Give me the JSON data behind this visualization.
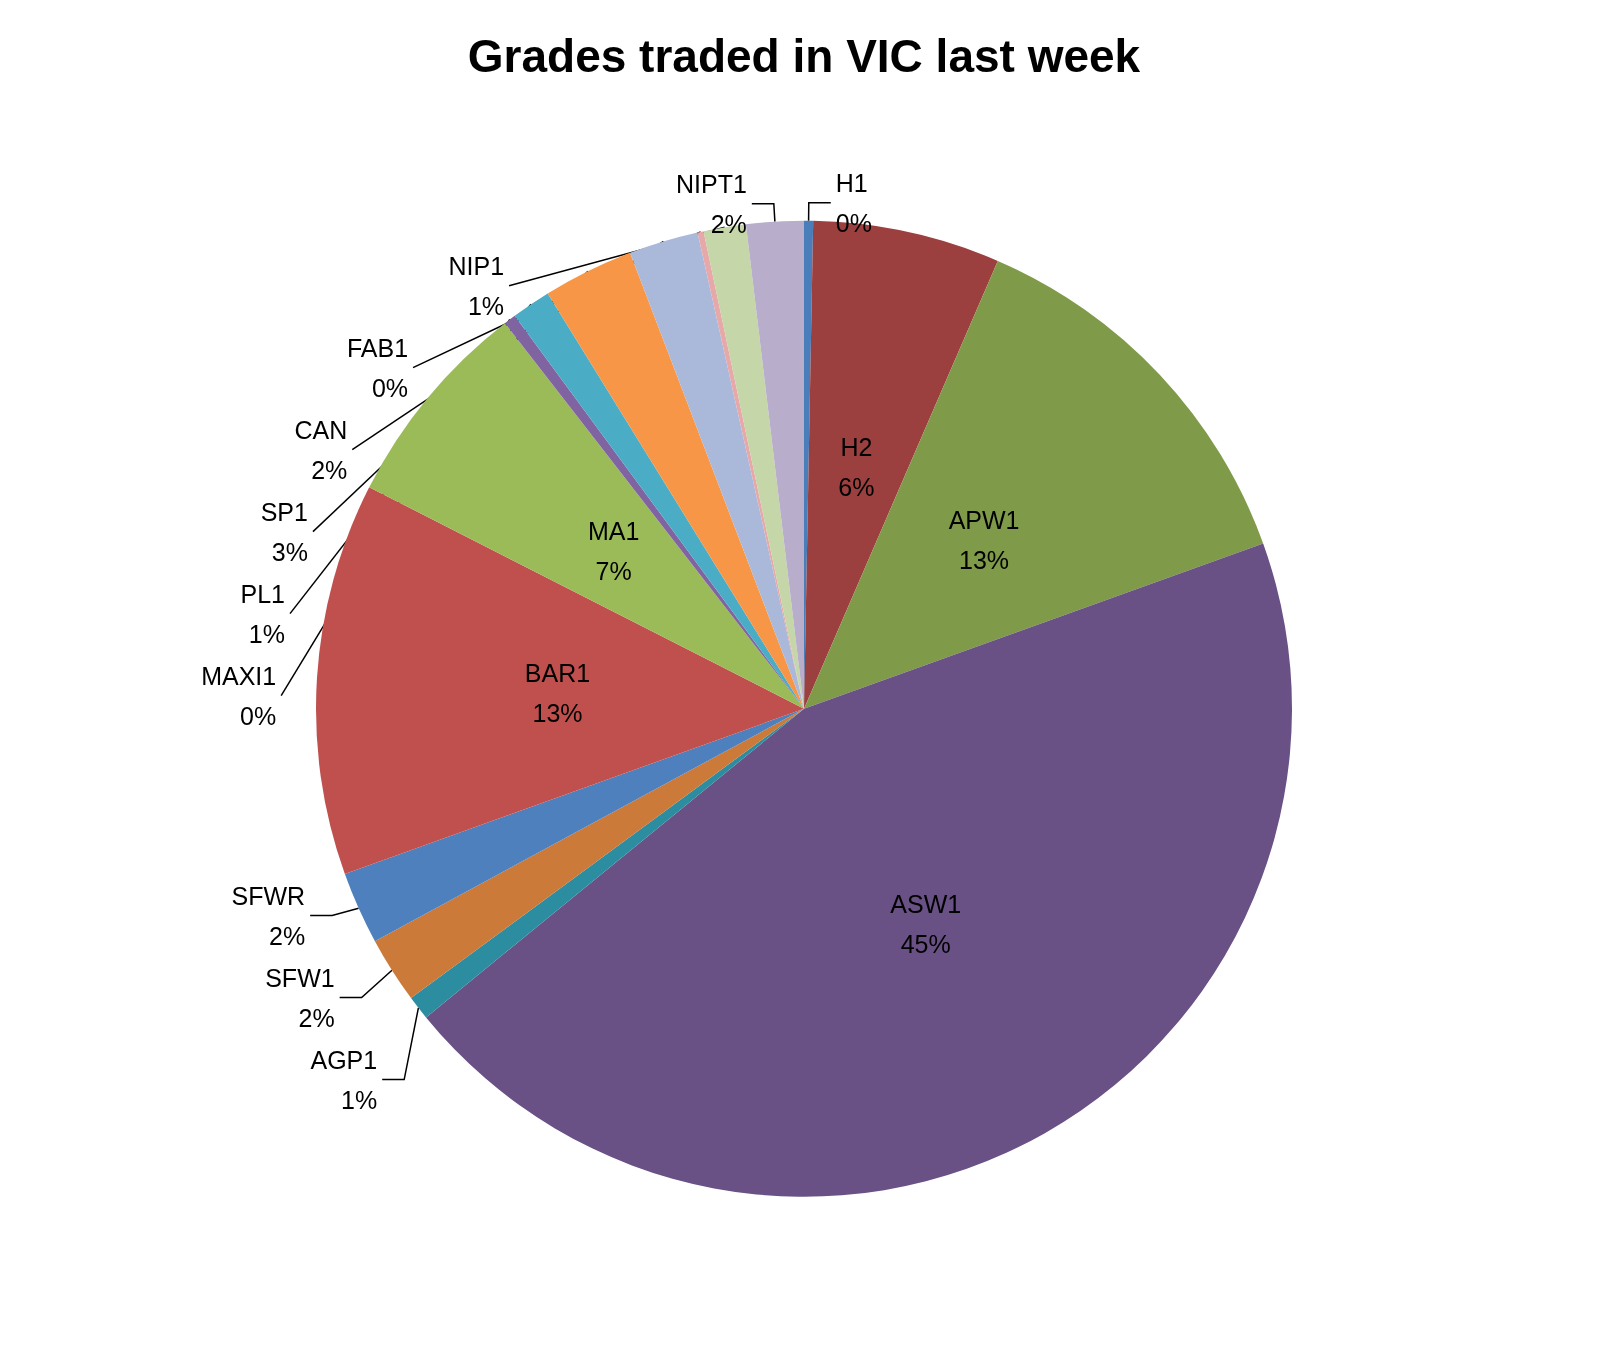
{
  "chart_data": {
    "type": "pie",
    "title": "Grades traded in VIC last week",
    "categories": [
      "H1",
      "H2",
      "APW1",
      "ASW1",
      "AGP1",
      "SFW1",
      "SFWR",
      "BAR1",
      "MA1",
      "MAXI1",
      "PL1",
      "SP1",
      "CAN",
      "FAB1",
      "NIP1",
      "NIPT1"
    ],
    "values": [
      0.3,
      6.2,
      13.0,
      44.6,
      0.8,
      2.2,
      2.4,
      13.0,
      7.0,
      0.4,
      1.3,
      3.0,
      2.3,
      0.2,
      1.4,
      1.9
    ],
    "colors": [
      "#4a7ebb",
      "#9b3f3f",
      "#7f9a48",
      "#695185",
      "#2c8ca0",
      "#cc7a39",
      "#4d80bd",
      "#c0504d",
      "#9bbb59",
      "#8064a2",
      "#4bacc6",
      "#f79646",
      "#aab9d9",
      "#e6a8a8",
      "#c5d6a8",
      "#b8aecb"
    ],
    "value_labels": [
      "0%",
      "6%",
      "13%",
      "45%",
      "1%",
      "2%",
      "2%",
      "13%",
      "7%",
      "0%",
      "1%",
      "3%",
      "2%",
      "0%",
      "1%",
      "2%"
    ],
    "legend": false
  }
}
